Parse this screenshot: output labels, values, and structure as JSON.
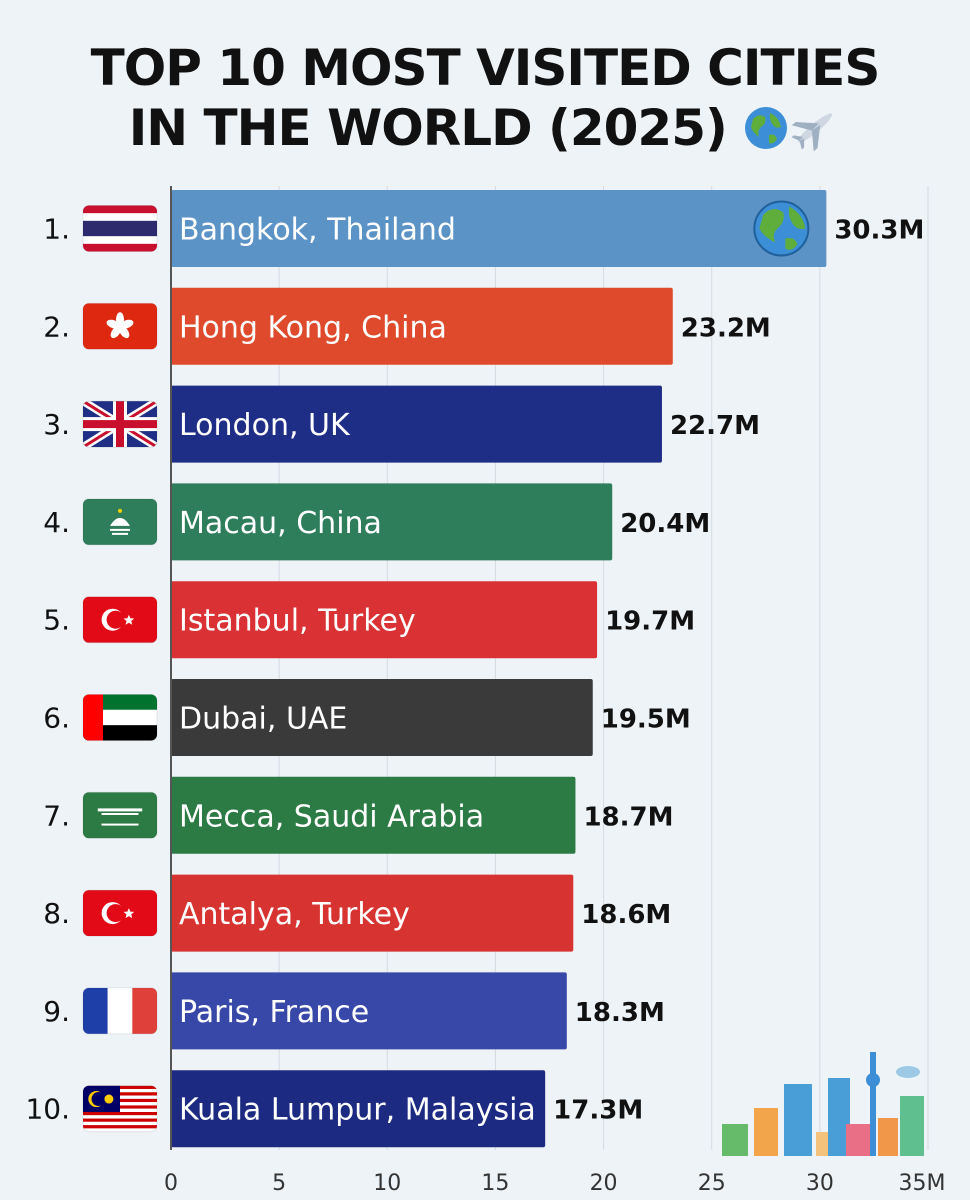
{
  "title_line1": "TOP 10 MOST VISITED CITIES",
  "title_line2": "IN THE WORLD (2025)",
  "title_icons": [
    "globe-icon",
    "airplane-icon"
  ],
  "chart_data": {
    "type": "bar",
    "orientation": "horizontal",
    "title": "TOP 10 MOST VISITED CITIES IN THE WORLD (2025)",
    "categories": [
      "Bangkok, Thailand",
      "Hong Kong, China",
      "London, UK",
      "Macau, China",
      "Istanbul, Turkey",
      "Dubai, UAE",
      "Mecca, Saudi Arabia",
      "Antalya, Turkey",
      "Paris, France",
      "Kuala Lumpur, Malaysia"
    ],
    "values": [
      30.3,
      23.2,
      22.7,
      20.4,
      19.7,
      19.5,
      18.7,
      18.6,
      18.3,
      17.3
    ],
    "value_labels": [
      "30.3M",
      "23.2M",
      "22.7M",
      "20.4M",
      "19.7M",
      "19.5M",
      "18.7M",
      "18.6M",
      "18.3M",
      "17.3M"
    ],
    "ranks": [
      "1.",
      "2.",
      "3.",
      "4.",
      "5.",
      "6.",
      "7.",
      "8.",
      "9.",
      "10."
    ],
    "flags": [
      "thailand",
      "hong-kong",
      "uk",
      "macau",
      "turkey",
      "uae",
      "saudi-arabia",
      "turkey",
      "france",
      "malaysia"
    ],
    "bar_colors": [
      "#5b93c7",
      "#de4a2b",
      "#1e2e86",
      "#2e7d5b",
      "#d93134",
      "#3a3a3a",
      "#2c7a44",
      "#d73330",
      "#3848a8",
      "#1c2a82"
    ],
    "xlim": [
      0,
      35
    ],
    "xticks": [
      0,
      5,
      10,
      15,
      20,
      25,
      30,
      35
    ],
    "xtick_labels": [
      "0",
      "5",
      "10",
      "15",
      "20",
      "25",
      "30",
      "35M"
    ],
    "grid": true,
    "xlabel": "",
    "ylabel": ""
  }
}
